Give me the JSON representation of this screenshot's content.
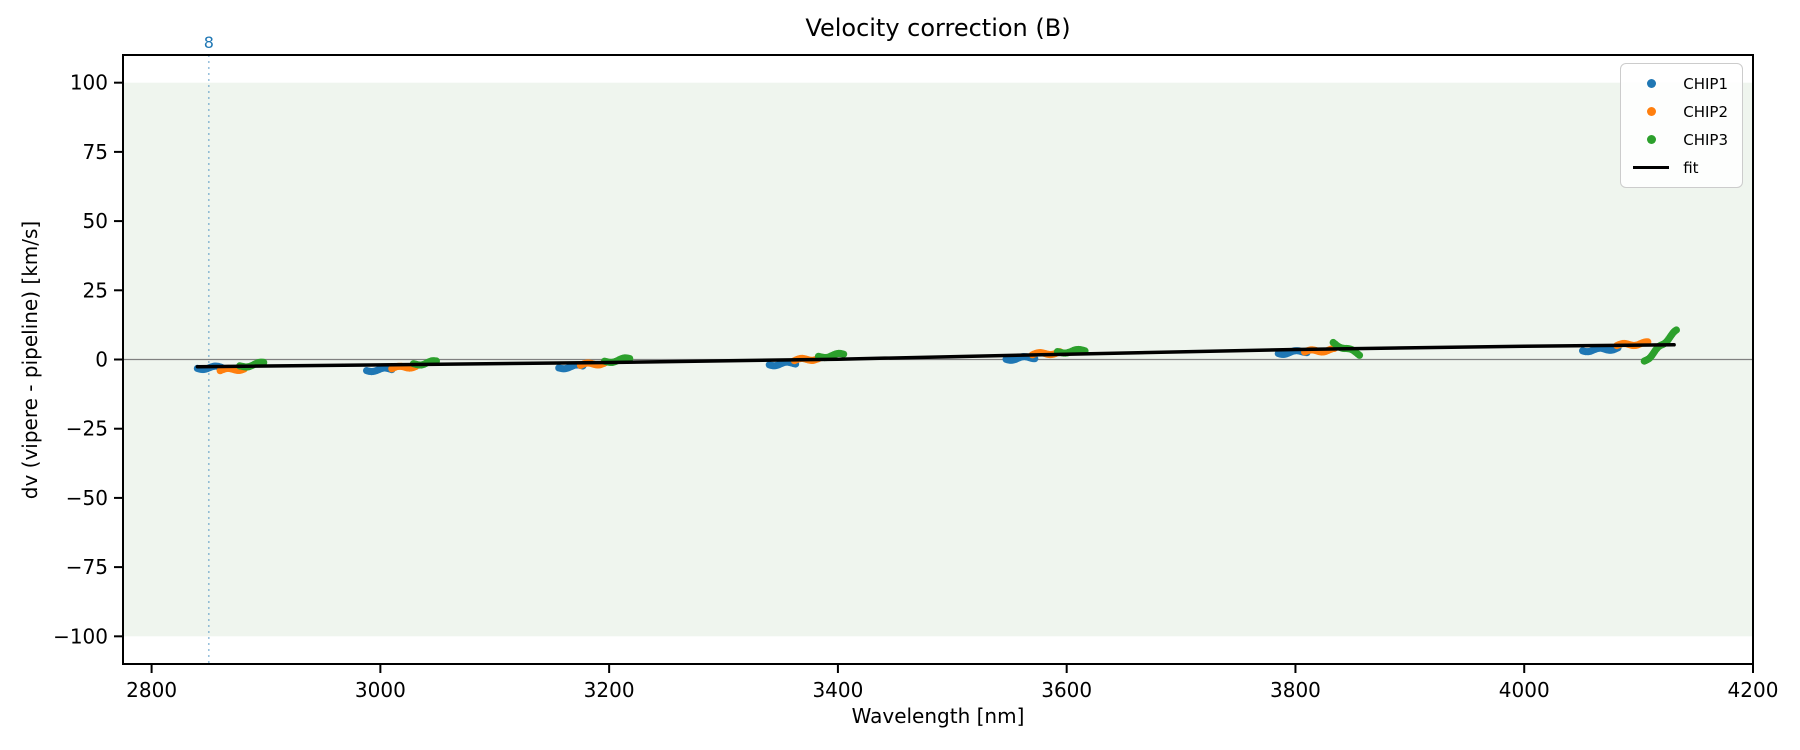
{
  "chart_data": {
    "type": "scatter",
    "title": "Velocity correction (B)",
    "xlabel": "Wavelength [nm]",
    "ylabel": "dv (vipere - pipeline) [km/s]",
    "xlim": [
      2775,
      4200
    ],
    "ylim": [
      -110,
      110
    ],
    "xticks": [
      2800,
      3000,
      3200,
      3400,
      3600,
      3800,
      4000,
      4200
    ],
    "yticks": [
      100,
      75,
      50,
      25,
      0,
      -25,
      -50,
      -75,
      -100
    ],
    "grid": false,
    "legend_position": "upper right",
    "band": {
      "y0": -100,
      "y1": 100,
      "color": "#eff5ee"
    },
    "vline": {
      "x": 2850,
      "label": "8",
      "label_color": "#1f77b4",
      "line_color": "rgba(31,119,180,0.45)",
      "style": "dotted"
    },
    "hline": {
      "y": 0,
      "color": "#808080"
    },
    "fit": {
      "label": "fit",
      "color": "#000000",
      "points": [
        [
          2840,
          -2.6
        ],
        [
          3200,
          -1.1
        ],
        [
          3400,
          0.1
        ],
        [
          3600,
          1.9
        ],
        [
          3800,
          3.6
        ],
        [
          4000,
          4.8
        ],
        [
          4131,
          5.3
        ]
      ]
    },
    "series": [
      {
        "name": "CHIP1",
        "color": "#1f77b4",
        "segments": [
          [
            2840,
            -3.2,
            2861,
            -2.8
          ],
          [
            2988,
            -4.0,
            3010,
            -3.4
          ],
          [
            3156,
            -3.0,
            3177,
            -2.3
          ],
          [
            3340,
            -1.9,
            3363,
            -1.2
          ],
          [
            3547,
            0.1,
            3572,
            0.8
          ],
          [
            3785,
            2.2,
            3810,
            3.0
          ],
          [
            4051,
            3.2,
            4082,
            4.0
          ]
        ]
      },
      {
        "name": "CHIP2",
        "color": "#ff7f0e",
        "segments": [
          [
            2860,
            -3.9,
            2881,
            -3.3
          ],
          [
            3010,
            -3.2,
            3031,
            -2.4
          ],
          [
            3175,
            -2.0,
            3198,
            -1.2
          ],
          [
            3362,
            -0.3,
            3385,
            0.4
          ],
          [
            3570,
            1.8,
            3594,
            2.5
          ],
          [
            3808,
            2.8,
            3834,
            3.5
          ],
          [
            4081,
            5.1,
            4108,
            5.9
          ]
        ]
      },
      {
        "name": "CHIP3",
        "color": "#2ca02c",
        "segments": [
          [
            2877,
            -2.6,
            2898,
            -1.3
          ],
          [
            3029,
            -1.8,
            3049,
            -0.8
          ],
          [
            3196,
            -0.9,
            3218,
            0.3
          ],
          [
            3383,
            0.9,
            3405,
            1.9
          ],
          [
            3592,
            2.6,
            3616,
            3.3
          ],
          [
            3833,
            5.9,
            3856,
            1.9
          ],
          [
            4105,
            -0.8,
            4133,
            10.3
          ]
        ]
      }
    ]
  }
}
